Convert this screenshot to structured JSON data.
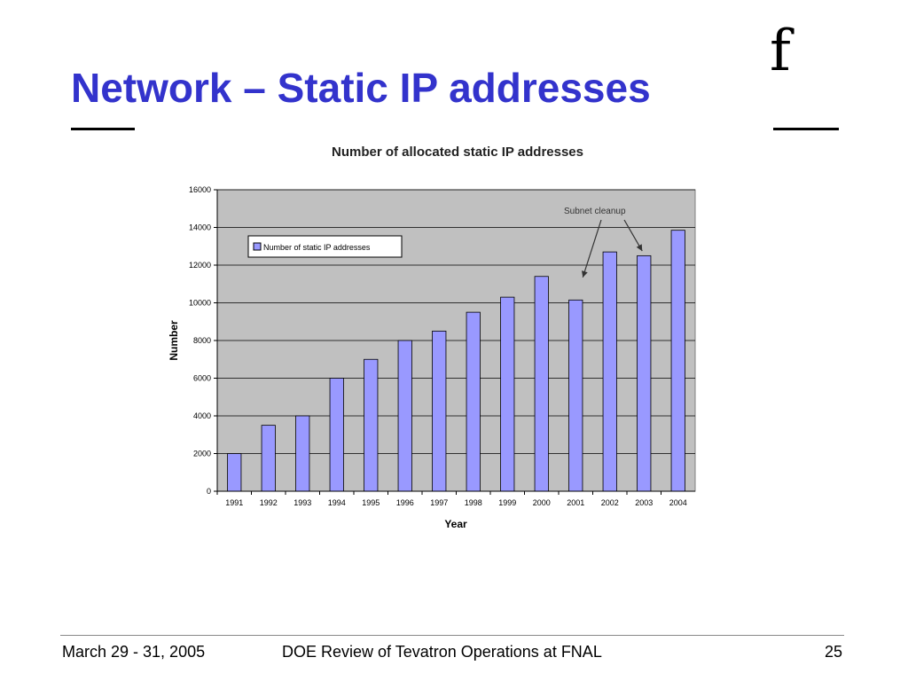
{
  "slide": {
    "title": "Network – Static IP addresses",
    "logo_icon": "fermilab-f-icon",
    "logo_text": "f"
  },
  "footer": {
    "date": "March 29 - 31, 2005",
    "center": "DOE Review of Tevatron Operations at FNAL",
    "page": "25"
  },
  "chart_data": {
    "type": "bar",
    "title": "Number of  allocated static IP addresses",
    "xlabel": "Year",
    "ylabel": "Number",
    "categories": [
      "1991",
      "1992",
      "1993",
      "1994",
      "1995",
      "1996",
      "1997",
      "1998",
      "1999",
      "2000",
      "2001",
      "2002",
      "2003",
      "2004"
    ],
    "series": [
      {
        "name": "Number of  static IP addresses",
        "values": [
          2000,
          3500,
          4000,
          6000,
          7000,
          8000,
          8500,
          9500,
          10300,
          11400,
          10150,
          12700,
          12500,
          13850
        ]
      }
    ],
    "ylim": [
      0,
      16000
    ],
    "yticks": [
      0,
      2000,
      4000,
      6000,
      8000,
      10000,
      12000,
      14000,
      16000
    ],
    "grid": true,
    "legend_position": "top-left",
    "annotation": {
      "text": "Subnet cleanup",
      "points_to": [
        "2001",
        "2003"
      ]
    },
    "colors": {
      "bar_fill": "#9999ff",
      "bar_stroke": "#000000",
      "plot_background": "#c0c0c0",
      "title_color": "#3333cc"
    }
  }
}
